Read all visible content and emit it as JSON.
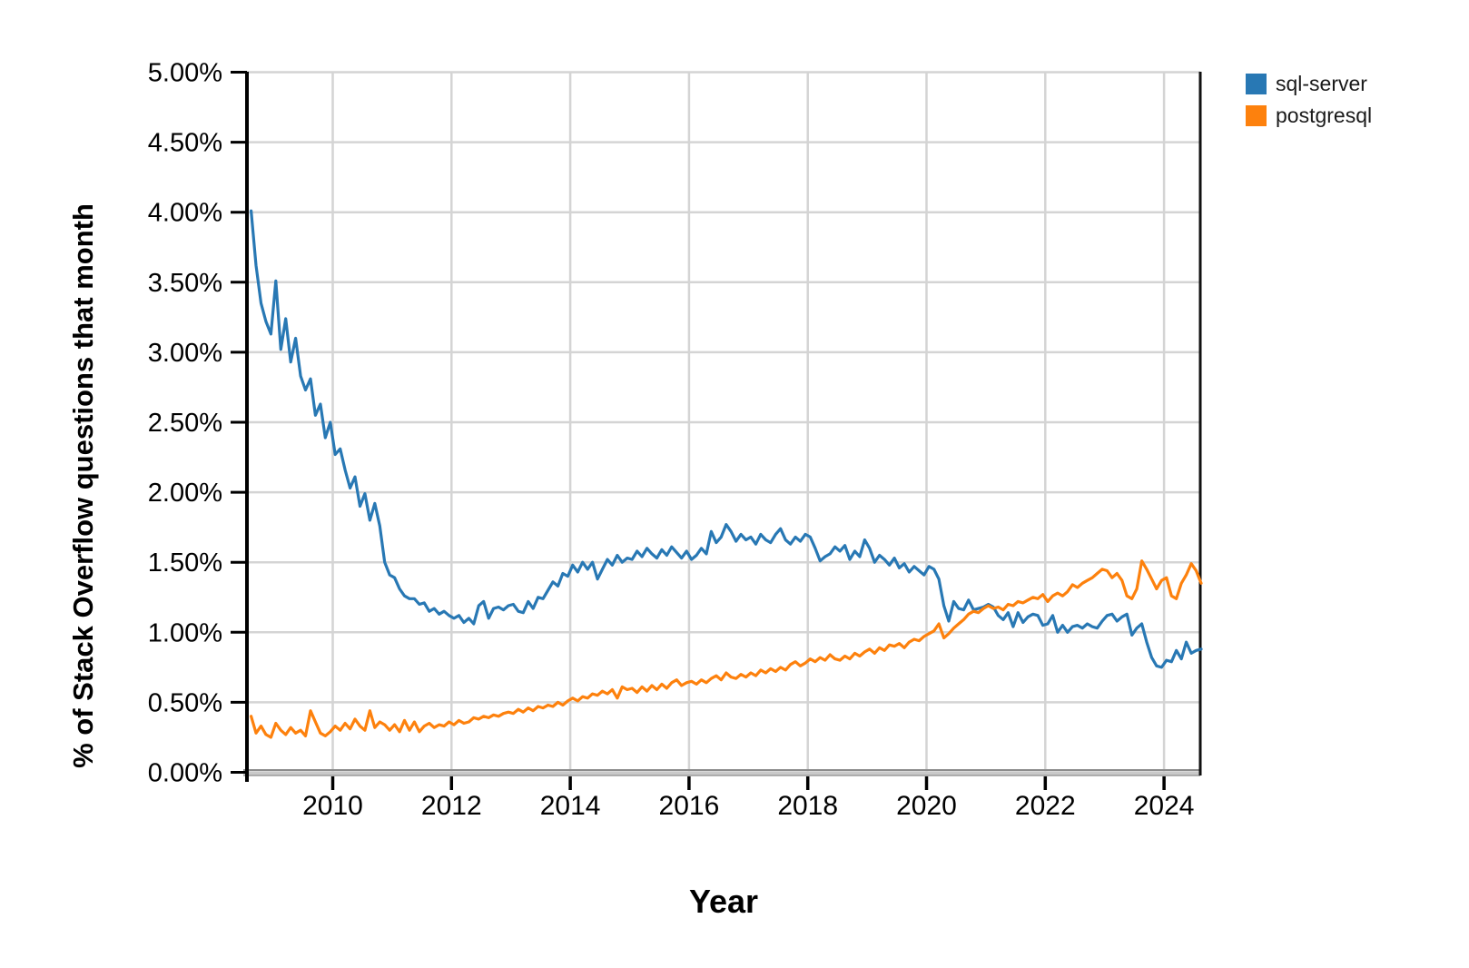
{
  "figure": {
    "background_color": "#ffffff",
    "gridline_color": "#d4d4d4",
    "axis_line_color": "#000000",
    "bottom_axis_color": "#a0a0a0",
    "legend": {
      "items": [
        {
          "label": "sql-server",
          "color": "#2878b4"
        },
        {
          "label": "postgresql",
          "color": "#fd810d"
        }
      ]
    }
  },
  "chart_data": {
    "type": "line",
    "title": "",
    "xlabel": "Year",
    "ylabel": "% of Stack Overflow questions that month",
    "x_axis": {
      "tick_labels": [
        "2010",
        "2012",
        "2014",
        "2016",
        "2018",
        "2020",
        "2022",
        "2024"
      ],
      "tick_values": [
        2010,
        2012,
        2014,
        2016,
        2018,
        2020,
        2022,
        2024
      ],
      "xlim": [
        2008.33,
        2024.67
      ]
    },
    "y_axis": {
      "tick_labels": [
        "0.00%",
        "0.50%",
        "1.00%",
        "1.50%",
        "2.00%",
        "2.50%",
        "3.00%",
        "3.50%",
        "4.00%",
        "4.50%",
        "5.00%"
      ],
      "tick_values": [
        0,
        0.5,
        1,
        1.5,
        2,
        2.5,
        3,
        3.5,
        4,
        4.5,
        5
      ],
      "ylim": [
        0,
        5
      ],
      "unit": "percent"
    },
    "grid": true,
    "legend_position": "top-right",
    "x_start": {
      "year": 2008,
      "month": 8
    },
    "x_end": {
      "year": 2024,
      "month": 8
    },
    "x_frequency": "monthly",
    "series": [
      {
        "name": "sql-server",
        "color": "#2878b4",
        "values": [
          4.01,
          3.62,
          3.35,
          3.22,
          3.13,
          3.51,
          3.02,
          3.24,
          2.93,
          3.1,
          2.83,
          2.73,
          2.81,
          2.55,
          2.63,
          2.39,
          2.5,
          2.27,
          2.31,
          2.16,
          2.03,
          2.11,
          1.9,
          1.99,
          1.8,
          1.92,
          1.76,
          1.5,
          1.41,
          1.39,
          1.31,
          1.26,
          1.24,
          1.24,
          1.2,
          1.21,
          1.15,
          1.17,
          1.13,
          1.15,
          1.12,
          1.1,
          1.12,
          1.07,
          1.1,
          1.06,
          1.19,
          1.22,
          1.1,
          1.17,
          1.18,
          1.16,
          1.19,
          1.2,
          1.15,
          1.14,
          1.22,
          1.17,
          1.25,
          1.24,
          1.3,
          1.36,
          1.33,
          1.42,
          1.4,
          1.48,
          1.43,
          1.5,
          1.45,
          1.5,
          1.38,
          1.45,
          1.52,
          1.48,
          1.55,
          1.5,
          1.53,
          1.52,
          1.58,
          1.54,
          1.6,
          1.56,
          1.53,
          1.59,
          1.55,
          1.61,
          1.57,
          1.53,
          1.58,
          1.52,
          1.55,
          1.6,
          1.56,
          1.72,
          1.64,
          1.68,
          1.77,
          1.72,
          1.65,
          1.7,
          1.66,
          1.68,
          1.63,
          1.7,
          1.66,
          1.64,
          1.7,
          1.74,
          1.66,
          1.63,
          1.68,
          1.65,
          1.7,
          1.68,
          1.6,
          1.51,
          1.54,
          1.56,
          1.61,
          1.58,
          1.62,
          1.52,
          1.58,
          1.54,
          1.66,
          1.6,
          1.5,
          1.55,
          1.52,
          1.48,
          1.53,
          1.46,
          1.49,
          1.43,
          1.47,
          1.44,
          1.41,
          1.47,
          1.45,
          1.38,
          1.19,
          1.08,
          1.22,
          1.17,
          1.16,
          1.23,
          1.16,
          1.17,
          1.18,
          1.2,
          1.18,
          1.12,
          1.09,
          1.14,
          1.04,
          1.14,
          1.07,
          1.11,
          1.13,
          1.12,
          1.05,
          1.06,
          1.12,
          1.0,
          1.05,
          1.0,
          1.04,
          1.05,
          1.03,
          1.06,
          1.04,
          1.03,
          1.08,
          1.12,
          1.13,
          1.08,
          1.11,
          1.13,
          0.98,
          1.03,
          1.06,
          0.93,
          0.82,
          0.76,
          0.75,
          0.8,
          0.79,
          0.87,
          0.81,
          0.93,
          0.85,
          0.87,
          0.88
        ]
      },
      {
        "name": "postgresql",
        "color": "#fd810d",
        "values": [
          0.4,
          0.28,
          0.33,
          0.27,
          0.25,
          0.35,
          0.3,
          0.27,
          0.32,
          0.28,
          0.3,
          0.26,
          0.44,
          0.36,
          0.28,
          0.26,
          0.29,
          0.33,
          0.3,
          0.35,
          0.31,
          0.38,
          0.33,
          0.3,
          0.44,
          0.32,
          0.36,
          0.34,
          0.3,
          0.34,
          0.29,
          0.37,
          0.3,
          0.36,
          0.29,
          0.33,
          0.35,
          0.32,
          0.34,
          0.33,
          0.36,
          0.34,
          0.37,
          0.35,
          0.36,
          0.39,
          0.38,
          0.4,
          0.39,
          0.41,
          0.4,
          0.42,
          0.43,
          0.42,
          0.45,
          0.43,
          0.46,
          0.44,
          0.47,
          0.46,
          0.48,
          0.47,
          0.5,
          0.48,
          0.51,
          0.53,
          0.51,
          0.54,
          0.53,
          0.56,
          0.55,
          0.58,
          0.56,
          0.59,
          0.53,
          0.61,
          0.59,
          0.6,
          0.57,
          0.61,
          0.58,
          0.62,
          0.59,
          0.63,
          0.6,
          0.64,
          0.66,
          0.62,
          0.64,
          0.65,
          0.63,
          0.66,
          0.64,
          0.67,
          0.69,
          0.66,
          0.71,
          0.68,
          0.67,
          0.7,
          0.68,
          0.71,
          0.69,
          0.73,
          0.71,
          0.74,
          0.72,
          0.75,
          0.73,
          0.77,
          0.79,
          0.76,
          0.78,
          0.81,
          0.79,
          0.82,
          0.8,
          0.84,
          0.81,
          0.8,
          0.83,
          0.81,
          0.85,
          0.83,
          0.86,
          0.88,
          0.85,
          0.89,
          0.87,
          0.91,
          0.9,
          0.92,
          0.89,
          0.93,
          0.95,
          0.94,
          0.97,
          0.99,
          1.01,
          1.06,
          0.96,
          0.99,
          1.03,
          1.06,
          1.09,
          1.13,
          1.15,
          1.14,
          1.17,
          1.19,
          1.17,
          1.18,
          1.16,
          1.2,
          1.19,
          1.22,
          1.21,
          1.23,
          1.25,
          1.24,
          1.27,
          1.22,
          1.26,
          1.28,
          1.26,
          1.29,
          1.34,
          1.32,
          1.35,
          1.37,
          1.39,
          1.42,
          1.45,
          1.44,
          1.39,
          1.42,
          1.37,
          1.26,
          1.24,
          1.31,
          1.51,
          1.45,
          1.38,
          1.31,
          1.37,
          1.39,
          1.26,
          1.24,
          1.35,
          1.41,
          1.49,
          1.44,
          1.35
        ]
      }
    ]
  }
}
